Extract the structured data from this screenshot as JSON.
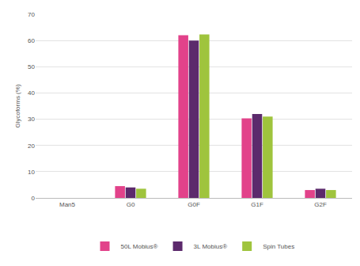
{
  "chart_data": {
    "type": "bar",
    "y_label": "Glycoforms (%)",
    "categories": [
      "Man5",
      "G0",
      "G0F",
      "G1F",
      "G2F"
    ],
    "series": [
      {
        "name": "50L Mobius®",
        "color": "#e2428a",
        "values": [
          0,
          4.5,
          62,
          30.3,
          3
        ]
      },
      {
        "name": "3L Mobius®",
        "color": "#5c2a6c",
        "values": [
          0,
          4.0,
          60,
          32,
          3.5
        ]
      },
      {
        "name": "Spin Tubes",
        "color": "#9fc43d",
        "values": [
          0,
          3.5,
          62.3,
          31,
          3
        ]
      }
    ],
    "ylim": [
      0,
      70
    ],
    "yticks": [
      0,
      10,
      20,
      30,
      40,
      50,
      60,
      70
    ],
    "grid": true,
    "legend": "bottom"
  }
}
